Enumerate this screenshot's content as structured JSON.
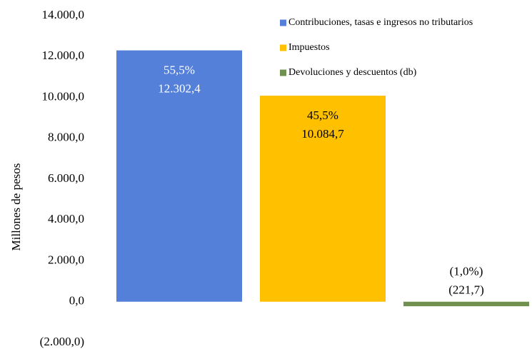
{
  "chart_data": {
    "type": "bar",
    "y_label": "Millones  de pesos",
    "ylim": [
      -2000,
      14000
    ],
    "yticks": [
      {
        "value": -2000,
        "label": "(2.000,0)"
      },
      {
        "value": 0,
        "label": "0,0"
      },
      {
        "value": 2000,
        "label": "2.000,0"
      },
      {
        "value": 4000,
        "label": "4.000,0"
      },
      {
        "value": 6000,
        "label": "6.000,0"
      },
      {
        "value": 8000,
        "label": "8.000,0"
      },
      {
        "value": 10000,
        "label": "10.000,0"
      },
      {
        "value": 12000,
        "label": "12.000,0"
      },
      {
        "value": 14000,
        "label": "14.000,0"
      }
    ],
    "grid": false,
    "legend": "upper right",
    "series": [
      {
        "name": "Contribuciones, tasas e ingresos no tributarios",
        "color": "#5580d9",
        "values": [
          12302.4
        ],
        "value_labels": [
          "12.302,4"
        ],
        "shares": [
          55.5
        ],
        "share_labels": [
          "55,5%"
        ],
        "label_color": "#ffffff"
      },
      {
        "name": "Impuestos",
        "color": "#ffc000",
        "values": [
          10084.7
        ],
        "value_labels": [
          "10.084,7"
        ],
        "shares": [
          45.5
        ],
        "share_labels": [
          "45,5%"
        ],
        "label_color": "#000000"
      },
      {
        "name": "Devoluciones y descuentos (db)",
        "color": "#70904f",
        "values": [
          -221.7
        ],
        "value_labels": [
          "(221,7)"
        ],
        "shares": [
          -1.0
        ],
        "share_labels": [
          "(1,0%)"
        ],
        "label_color": "#000000"
      }
    ]
  }
}
